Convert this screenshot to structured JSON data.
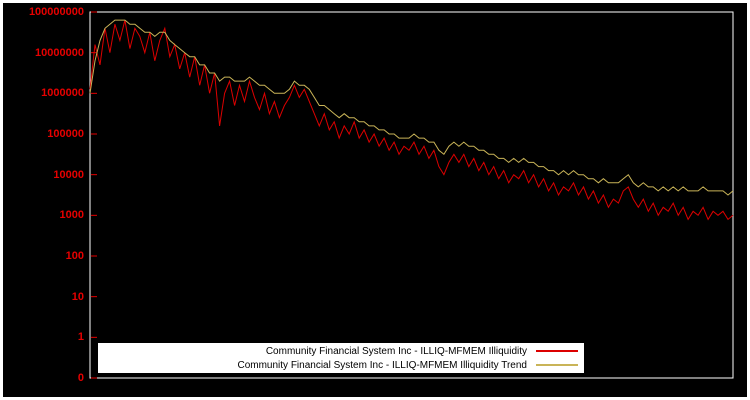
{
  "legend": {
    "items": [
      {
        "label": "Community Financial System Inc - ILLIQ-MFMEM Illiquidity",
        "color": "#dc0000"
      },
      {
        "label": "Community Financial System Inc - ILLIQ-MFMEM Illiquidity Trend",
        "color": "#c9b458"
      }
    ],
    "background": "#ffffff"
  },
  "axis": {
    "y_tick_labels": [
      "100000000",
      "10000000",
      "1000000",
      "100000",
      "10000",
      "1000",
      "100",
      "10",
      "1",
      "0"
    ],
    "x_tick_labels": []
  },
  "chart_data": {
    "type": "line",
    "title": "",
    "xlabel": "",
    "ylabel": "",
    "y_scale": "log",
    "ylim": [
      0.1,
      100000000
    ],
    "background": "#000000",
    "border_color": "#ffffff",
    "tick_color": "#e60000",
    "grid": false,
    "legend_position": "bottom-center",
    "y_ticks": [
      {
        "label": "100000000",
        "value": 100000000
      },
      {
        "label": "10000000",
        "value": 10000000
      },
      {
        "label": "1000000",
        "value": 1000000
      },
      {
        "label": "100000",
        "value": 100000
      },
      {
        "label": "10000",
        "value": 10000
      },
      {
        "label": "1000",
        "value": 1000
      },
      {
        "label": "100",
        "value": 100
      },
      {
        "label": "10",
        "value": 10
      },
      {
        "label": "1",
        "value": 1
      },
      {
        "label": "0",
        "value": 0.1
      }
    ],
    "series": [
      {
        "name": "Community Financial System Inc - ILLIQ-MFMEM Illiquidity",
        "color": "#dc0000",
        "values": [
          1260000,
          15800000,
          5010000,
          39800000,
          10000000,
          50100000,
          20000000,
          63100000,
          12600000,
          39800000,
          25100000,
          10000000,
          31600000,
          6310000,
          20000000,
          39800000,
          7940000,
          15800000,
          3980000,
          10000000,
          2510000,
          7940000,
          1580000,
          5010000,
          1000000,
          3160000,
          158000,
          1000000,
          2000000,
          501000,
          1580000,
          631000,
          2000000,
          794000,
          398000,
          1000000,
          316000,
          631000,
          251000,
          501000,
          794000,
          1580000,
          794000,
          1260000,
          631000,
          316000,
          158000,
          316000,
          126000,
          200000,
          79400,
          158000,
          100000,
          200000,
          79400,
          126000,
          63100,
          100000,
          50100,
          79400,
          39800,
          63100,
          31600,
          50100,
          39800,
          63100,
          31600,
          50100,
          25100,
          39800,
          15800,
          10000,
          20000,
          31600,
          20000,
          31600,
          15800,
          25100,
          12600,
          20000,
          10000,
          15800,
          7940,
          12600,
          6310,
          10000,
          7940,
          12600,
          6310,
          10000,
          5010,
          7940,
          3980,
          6310,
          3160,
          5010,
          3980,
          6310,
          3160,
          5010,
          2510,
          3980,
          2000,
          3160,
          1580,
          2510,
          2000,
          3980,
          5010,
          2510,
          1580,
          2510,
          1260,
          2000,
          1000,
          1580,
          1260,
          2000,
          1000,
          1580,
          794,
          1260,
          1000,
          1580,
          794,
          1260,
          1000,
          1260,
          794,
          1000
        ]
      },
      {
        "name": "Community Financial System Inc - ILLIQ-MFMEM Illiquidity Trend",
        "color": "#c9b458",
        "values": [
          1000000,
          6310000,
          20000000,
          39800000,
          50100000,
          63100000,
          63100000,
          63100000,
          50100000,
          50100000,
          39800000,
          31600000,
          31600000,
          25100000,
          31600000,
          31600000,
          20000000,
          15800000,
          12600000,
          10000000,
          7940000,
          7940000,
          5010000,
          5010000,
          3160000,
          3160000,
          2000000,
          2510000,
          2510000,
          2000000,
          2000000,
          2000000,
          2510000,
          2000000,
          1580000,
          1580000,
          1260000,
          1000000,
          1000000,
          1000000,
          1260000,
          2000000,
          1580000,
          1580000,
          1260000,
          794000,
          501000,
          501000,
          398000,
          316000,
          251000,
          316000,
          251000,
          251000,
          200000,
          200000,
          158000,
          158000,
          126000,
          126000,
          100000,
          100000,
          79400,
          79400,
          79400,
          100000,
          79400,
          79400,
          63100,
          63100,
          39800,
          31600,
          50100,
          63100,
          50100,
          63100,
          50100,
          50100,
          39800,
          39800,
          31600,
          31600,
          25100,
          25100,
          20000,
          25100,
          20000,
          25100,
          20000,
          20000,
          15800,
          15800,
          12600,
          12600,
          10000,
          12600,
          10000,
          12600,
          10000,
          10000,
          7940,
          7940,
          6310,
          7940,
          6310,
          6310,
          6310,
          7940,
          10000,
          6310,
          5010,
          6310,
          5010,
          5010,
          3980,
          5010,
          3980,
          5010,
          3980,
          5010,
          3980,
          3980,
          3980,
          5010,
          3980,
          3980,
          3980,
          3980,
          3160,
          3980
        ]
      }
    ]
  }
}
